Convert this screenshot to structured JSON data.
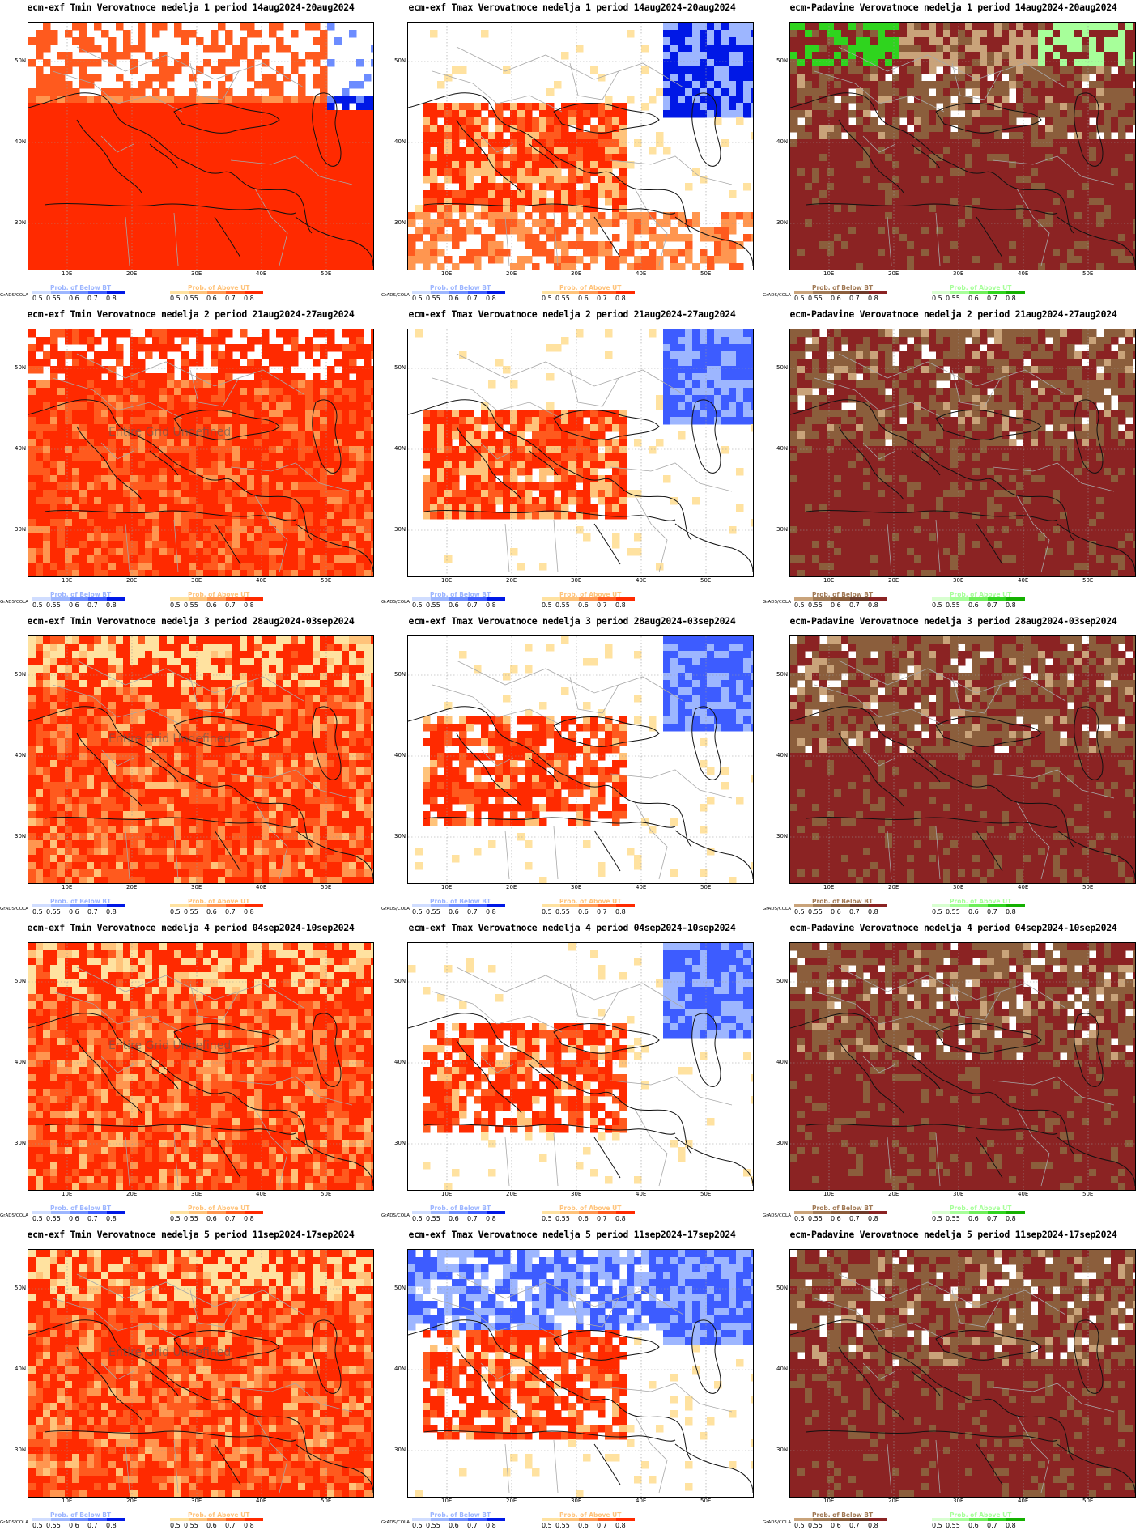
{
  "lat_labels": [
    "50N",
    "40N",
    "30N"
  ],
  "lon_labels": [
    "10E",
    "20E",
    "30E",
    "40E",
    "50E"
  ],
  "grads_label": "GrADS/COLA",
  "undefined_label": "Entire Grid Undefined",
  "legend_ticks": [
    "0.5",
    "0.55",
    "0.6",
    "0.7",
    "0.8"
  ],
  "legends": {
    "below_bt": "Prob. of Below BT",
    "above_ut": "Prob. of Above UT"
  },
  "colors": {
    "tmin_scale": [
      "#ffe2a0",
      "#ffc37a",
      "#ff9650",
      "#ff5a1e",
      "#ff2a00"
    ],
    "cold_scale": [
      "#d0ddff",
      "#9db6ff",
      "#6c8cff",
      "#3d5cff",
      "#0018e6"
    ],
    "dry_scale": [
      "#c9a37a",
      "#a17a56",
      "#8b5e3c",
      "#6e3b2a",
      "#8b2323"
    ],
    "wet_scale": [
      "#d8ffd0",
      "#a7ff9a",
      "#6fef5a",
      "#2fd41e",
      "#14b000"
    ]
  },
  "rows": [
    {
      "tmin_title": "ecm-exf Tmin Verovatnoce nedelja 1 period 14aug2024-20aug2024",
      "tmax_title": "ecm-exf Tmax Verovatnoce nedelja 1 period 14aug2024-20aug2024",
      "prec_title": "ecm-Padavine Verovatnoce nedelja 1 period 14aug2024-20aug2024",
      "undef": false
    },
    {
      "tmin_title": "ecm-exf Tmin Verovatnoce nedelja 2 period 21aug2024-27aug2024",
      "tmax_title": "ecm-exf Tmax Verovatnoce nedelja 2 period 21aug2024-27aug2024",
      "prec_title": "ecm-Padavine Verovatnoce nedelja 2 period 21aug2024-27aug2024",
      "undef": true
    },
    {
      "tmin_title": "ecm-exf Tmin Verovatnoce nedelja 3 period 28aug2024-03sep2024",
      "tmax_title": "ecm-exf Tmax Verovatnoce nedelja 3 period 28aug2024-03sep2024",
      "prec_title": "ecm-Padavine Verovatnoce nedelja 3 period 28aug2024-03sep2024",
      "undef": true
    },
    {
      "tmin_title": "ecm-exf Tmin Verovatnoce nedelja 4 period 04sep2024-10sep2024",
      "tmax_title": "ecm-exf Tmax Verovatnoce nedelja 4 period 04sep2024-10sep2024",
      "prec_title": "ecm-Padavine Verovatnoce nedelja 4 period 04sep2024-10sep2024",
      "undef": true
    },
    {
      "tmin_title": "ecm-exf Tmin Verovatnoce nedelja 5 period 11sep2024-17sep2024",
      "tmax_title": "ecm-exf Tmax Verovatnoce nedelja 5 period 11sep2024-17sep2024",
      "prec_title": "ecm-Padavine Verovatnoce nedelja 5 period 11sep2024-17sep2024",
      "undef": true
    }
  ]
}
